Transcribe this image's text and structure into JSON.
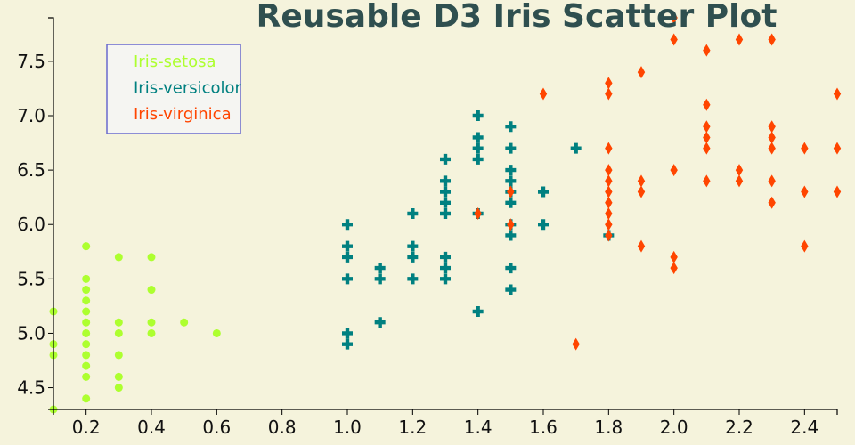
{
  "chart_data": {
    "type": "scatter",
    "title": "Reusable D3 Iris Scatter Plot",
    "xlabel": "",
    "ylabel": "",
    "xlim": [
      0.1,
      2.5
    ],
    "ylim": [
      4.3,
      7.9
    ],
    "x_ticks": [
      "0.2",
      "0.4",
      "0.6",
      "0.8",
      "1.0",
      "1.2",
      "1.4",
      "1.6",
      "1.8",
      "2.0",
      "2.2",
      "2.4"
    ],
    "y_ticks": [
      "4.5",
      "5.0",
      "5.5",
      "6.0",
      "6.5",
      "7.0",
      "7.5"
    ],
    "grid": false,
    "legend_position": "top-left",
    "series": [
      {
        "name": "Iris-setosa",
        "color": "#adff2f",
        "symbol": "circle",
        "points": [
          [
            0.1,
            5.2
          ],
          [
            0.1,
            4.9
          ],
          [
            0.1,
            4.8
          ],
          [
            0.1,
            4.3
          ],
          [
            0.2,
            5.8
          ],
          [
            0.2,
            5.5
          ],
          [
            0.2,
            5.4
          ],
          [
            0.2,
            5.3
          ],
          [
            0.2,
            5.2
          ],
          [
            0.2,
            5.1
          ],
          [
            0.2,
            5.0
          ],
          [
            0.2,
            4.9
          ],
          [
            0.2,
            4.8
          ],
          [
            0.2,
            4.7
          ],
          [
            0.2,
            4.6
          ],
          [
            0.2,
            4.4
          ],
          [
            0.3,
            5.7
          ],
          [
            0.3,
            5.1
          ],
          [
            0.3,
            5.0
          ],
          [
            0.3,
            4.8
          ],
          [
            0.3,
            4.6
          ],
          [
            0.3,
            4.5
          ],
          [
            0.4,
            5.7
          ],
          [
            0.4,
            5.4
          ],
          [
            0.4,
            5.1
          ],
          [
            0.4,
            5.0
          ],
          [
            0.5,
            5.1
          ],
          [
            0.6,
            5.0
          ]
        ]
      },
      {
        "name": "Iris-versicolor",
        "color": "#008080",
        "symbol": "cross",
        "points": [
          [
            1.0,
            6.0
          ],
          [
            1.0,
            5.8
          ],
          [
            1.0,
            5.7
          ],
          [
            1.0,
            5.5
          ],
          [
            1.0,
            5.0
          ],
          [
            1.0,
            4.9
          ],
          [
            1.1,
            5.6
          ],
          [
            1.1,
            5.5
          ],
          [
            1.1,
            5.1
          ],
          [
            1.2,
            6.1
          ],
          [
            1.2,
            5.8
          ],
          [
            1.2,
            5.7
          ],
          [
            1.2,
            5.5
          ],
          [
            1.3,
            6.6
          ],
          [
            1.3,
            6.4
          ],
          [
            1.3,
            6.3
          ],
          [
            1.3,
            6.2
          ],
          [
            1.3,
            6.1
          ],
          [
            1.3,
            5.7
          ],
          [
            1.3,
            5.6
          ],
          [
            1.3,
            5.5
          ],
          [
            1.4,
            7.0
          ],
          [
            1.4,
            6.8
          ],
          [
            1.4,
            6.7
          ],
          [
            1.4,
            6.6
          ],
          [
            1.4,
            6.1
          ],
          [
            1.4,
            5.2
          ],
          [
            1.5,
            6.9
          ],
          [
            1.5,
            6.7
          ],
          [
            1.5,
            6.5
          ],
          [
            1.5,
            6.4
          ],
          [
            1.5,
            6.3
          ],
          [
            1.5,
            6.2
          ],
          [
            1.5,
            6.0
          ],
          [
            1.5,
            5.9
          ],
          [
            1.5,
            5.6
          ],
          [
            1.5,
            5.4
          ],
          [
            1.6,
            6.3
          ],
          [
            1.6,
            6.0
          ],
          [
            1.7,
            6.7
          ],
          [
            1.8,
            5.9
          ]
        ]
      },
      {
        "name": "Iris-virginica",
        "color": "#ff4500",
        "symbol": "diamond",
        "points": [
          [
            1.4,
            6.1
          ],
          [
            1.5,
            6.3
          ],
          [
            1.5,
            6.0
          ],
          [
            1.6,
            7.2
          ],
          [
            1.7,
            4.9
          ],
          [
            1.8,
            7.3
          ],
          [
            1.8,
            7.2
          ],
          [
            1.8,
            6.7
          ],
          [
            1.8,
            6.5
          ],
          [
            1.8,
            6.4
          ],
          [
            1.8,
            6.3
          ],
          [
            1.8,
            6.2
          ],
          [
            1.8,
            6.1
          ],
          [
            1.8,
            6.0
          ],
          [
            1.8,
            5.9
          ],
          [
            1.9,
            7.4
          ],
          [
            1.9,
            6.4
          ],
          [
            1.9,
            6.3
          ],
          [
            1.9,
            5.8
          ],
          [
            2.0,
            7.9
          ],
          [
            2.0,
            7.7
          ],
          [
            2.0,
            6.5
          ],
          [
            2.0,
            5.7
          ],
          [
            2.0,
            5.6
          ],
          [
            2.1,
            7.6
          ],
          [
            2.1,
            7.1
          ],
          [
            2.1,
            6.9
          ],
          [
            2.1,
            6.8
          ],
          [
            2.1,
            6.7
          ],
          [
            2.1,
            6.4
          ],
          [
            2.2,
            7.7
          ],
          [
            2.2,
            6.5
          ],
          [
            2.2,
            6.4
          ],
          [
            2.3,
            7.7
          ],
          [
            2.3,
            6.9
          ],
          [
            2.3,
            6.8
          ],
          [
            2.3,
            6.7
          ],
          [
            2.3,
            6.4
          ],
          [
            2.3,
            6.2
          ],
          [
            2.4,
            6.7
          ],
          [
            2.4,
            6.3
          ],
          [
            2.4,
            5.8
          ],
          [
            2.5,
            7.2
          ],
          [
            2.5,
            6.7
          ],
          [
            2.5,
            6.3
          ]
        ]
      }
    ]
  }
}
